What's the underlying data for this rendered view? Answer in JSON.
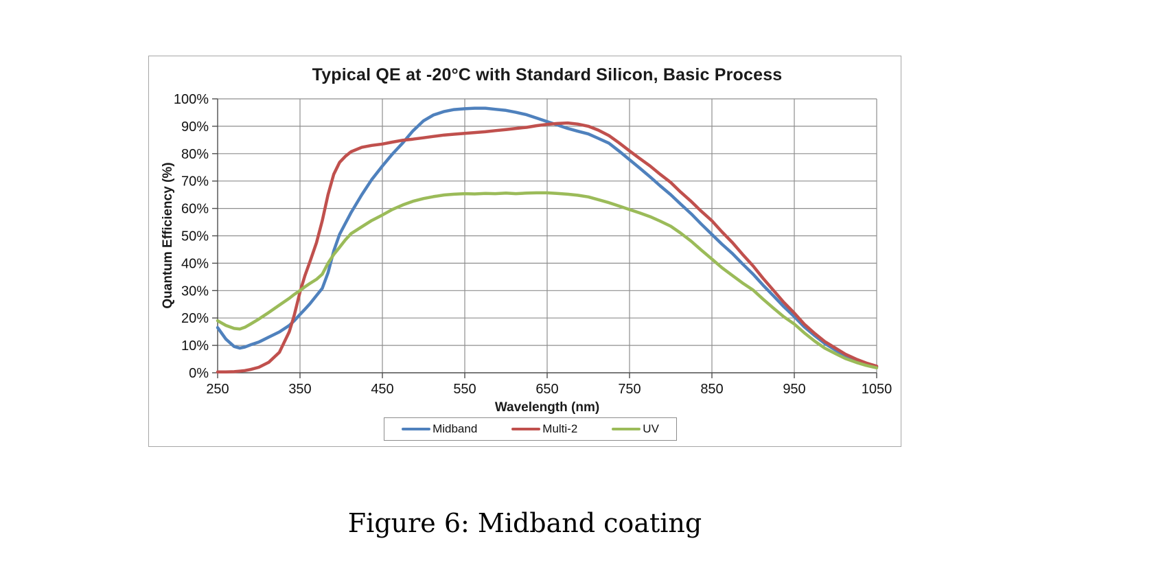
{
  "figure": {
    "caption": "Figure 6: Midband coating"
  },
  "chart_data": {
    "type": "line",
    "title": "Typical QE at -20°C with Standard Silicon, Basic Process",
    "xlabel": "Wavelength (nm)",
    "ylabel": "Quantum Efficiency (%)",
    "xlim": [
      250,
      1050
    ],
    "ylim": [
      0,
      100
    ],
    "grid": true,
    "legend_position": "bottom",
    "x_ticks": [
      250,
      350,
      450,
      550,
      650,
      750,
      850,
      950,
      1050
    ],
    "x_tick_labels": [
      "250",
      "350",
      "450",
      "550",
      "650",
      "750",
      "850",
      "950",
      "1050"
    ],
    "y_ticks": [
      0,
      10,
      20,
      30,
      40,
      50,
      60,
      70,
      80,
      90,
      100
    ],
    "y_tick_labels": [
      "0%",
      "10%",
      "20%",
      "30%",
      "40%",
      "50%",
      "60%",
      "70%",
      "80%",
      "90%",
      "100%"
    ],
    "x": [
      250,
      260,
      270,
      277,
      283,
      290,
      300,
      312,
      325,
      337,
      343,
      350,
      356,
      362,
      370,
      377,
      384,
      391,
      398,
      405,
      412,
      425,
      437,
      450,
      462,
      475,
      487,
      500,
      512,
      525,
      537,
      550,
      562,
      575,
      587,
      600,
      612,
      625,
      637,
      650,
      662,
      675,
      687,
      700,
      712,
      725,
      737,
      750,
      762,
      775,
      787,
      800,
      812,
      825,
      837,
      850,
      862,
      875,
      887,
      900,
      912,
      925,
      937,
      950,
      962,
      975,
      987,
      1000,
      1012,
      1025,
      1037,
      1050
    ],
    "series": [
      {
        "name": "Midband",
        "color": "#4F81BD",
        "values": [
          16.5,
          12.3,
          9.6,
          9.0,
          9.4,
          10.2,
          11.2,
          13.0,
          14.9,
          17.3,
          19.0,
          21.3,
          23.2,
          25.2,
          28.2,
          30.8,
          36.5,
          44.5,
          50.5,
          54.5,
          58.5,
          65.0,
          70.5,
          75.5,
          79.8,
          84.0,
          88.3,
          92.0,
          94.1,
          95.4,
          96.1,
          96.4,
          96.6,
          96.6,
          96.2,
          95.8,
          95.1,
          94.2,
          93.0,
          91.7,
          90.5,
          89.2,
          88.2,
          87.2,
          85.6,
          83.8,
          81.0,
          77.8,
          74.8,
          71.5,
          68.3,
          65.0,
          61.6,
          58.0,
          54.3,
          50.5,
          47.0,
          43.5,
          39.8,
          36.0,
          32.0,
          28.0,
          24.2,
          20.5,
          16.8,
          13.5,
          10.7,
          8.3,
          6.2,
          4.5,
          3.2,
          2.2
        ]
      },
      {
        "name": "Multi-2",
        "color": "#C0504D",
        "values": [
          0.3,
          0.3,
          0.4,
          0.6,
          0.8,
          1.2,
          2.0,
          3.8,
          7.5,
          15.0,
          21.0,
          29.5,
          35.5,
          40.5,
          47.5,
          55.5,
          65.0,
          72.5,
          76.8,
          79.0,
          80.7,
          82.3,
          83.0,
          83.5,
          84.2,
          84.9,
          85.3,
          85.8,
          86.3,
          86.8,
          87.1,
          87.4,
          87.7,
          88.0,
          88.4,
          88.8,
          89.2,
          89.6,
          90.2,
          90.7,
          91.0,
          91.2,
          90.8,
          90.0,
          88.6,
          86.6,
          84.0,
          81.0,
          78.3,
          75.5,
          72.5,
          69.5,
          66.0,
          62.5,
          59.0,
          55.5,
          51.5,
          47.5,
          43.3,
          39.0,
          34.5,
          30.0,
          25.8,
          21.8,
          17.8,
          14.3,
          11.4,
          9.0,
          6.8,
          5.0,
          3.6,
          2.4
        ]
      },
      {
        "name": "UV",
        "color": "#9BBB59",
        "values": [
          19.0,
          17.3,
          16.2,
          16.0,
          16.6,
          17.8,
          19.6,
          22.0,
          24.7,
          27.2,
          28.6,
          30.0,
          31.4,
          32.6,
          34.1,
          36.0,
          40.0,
          43.2,
          45.8,
          48.5,
          50.8,
          53.3,
          55.6,
          57.6,
          59.6,
          61.3,
          62.6,
          63.6,
          64.3,
          64.9,
          65.2,
          65.4,
          65.3,
          65.5,
          65.4,
          65.6,
          65.4,
          65.6,
          65.7,
          65.7,
          65.5,
          65.2,
          64.8,
          64.2,
          63.2,
          62.1,
          60.9,
          59.6,
          58.4,
          57.0,
          55.4,
          53.5,
          51.0,
          48.0,
          44.8,
          41.5,
          38.4,
          35.5,
          32.8,
          30.2,
          26.9,
          23.5,
          20.5,
          17.8,
          14.6,
          11.5,
          9.0,
          7.0,
          5.2,
          3.8,
          2.7,
          1.8
        ]
      }
    ]
  },
  "colors": {
    "grid": "#8e8e8e",
    "axis": "#4d4d4d",
    "chart_border": "#a6a6a6",
    "text": "#1a1a1a"
  }
}
